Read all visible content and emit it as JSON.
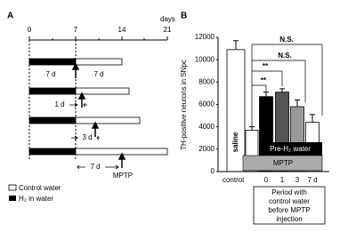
{
  "panel_a": {
    "label": "A",
    "axis_unit": "days",
    "axis_ticks": [
      "0",
      "7",
      "14",
      "21"
    ],
    "row_labels": [
      "7 d",
      "7 d",
      "1 d",
      "3 d",
      "7 d"
    ],
    "injection": "MPTP",
    "legend": [
      "Control water",
      "H₂ in water"
    ]
  },
  "chart_data": {
    "type": "bar",
    "panel": "B",
    "ylabel": "TH-positive neurons in SNpc",
    "categories": [
      "control",
      null,
      "0",
      "1",
      "3",
      "7 d"
    ],
    "values": [
      10900,
      3700,
      6700,
      7100,
      5800,
      4400
    ],
    "errors": [
      800,
      300,
      400,
      300,
      600,
      700
    ],
    "colors": [
      "#ffffff",
      "#ffffff",
      "#000000",
      "#555555",
      "#999999",
      "#ffffff"
    ],
    "ylim": [
      0,
      12000
    ],
    "yticks": [
      0,
      2000,
      4000,
      6000,
      8000,
      10000,
      12000
    ],
    "annotations": [
      "saline",
      "Pre-H₂ water",
      "MPTP",
      "N.S.",
      "N.S.",
      "**",
      "**"
    ],
    "period_note": [
      "Period with",
      "control water",
      "before MPTP",
      "injection"
    ]
  }
}
